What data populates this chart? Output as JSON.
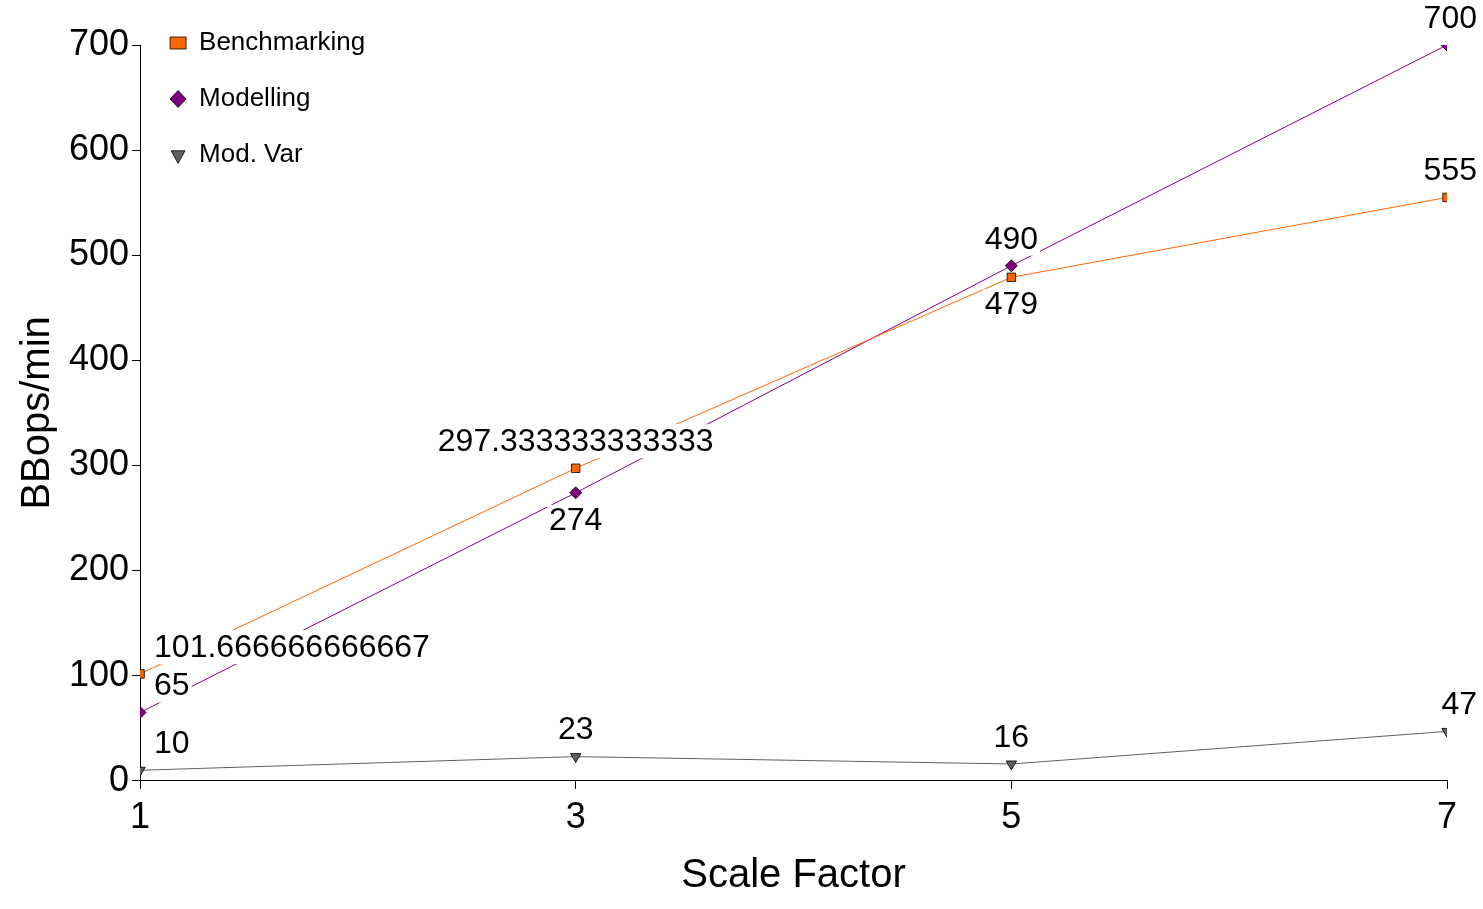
{
  "chart_data": {
    "type": "line",
    "xlabel": "Scale Factor",
    "ylabel": "BBops/min",
    "x": [
      1,
      3,
      5,
      7
    ],
    "xlim": [
      1,
      7
    ],
    "xticks": [
      1,
      3,
      5,
      7
    ],
    "ylim": [
      0,
      700
    ],
    "yticks": [
      0,
      100,
      200,
      300,
      400,
      500,
      600,
      700
    ],
    "grid": false,
    "legend": "top left",
    "data_labels": true,
    "series": [
      {
        "name": "Benchmarking",
        "color": "#ff6600",
        "marker": "square",
        "values": [
          101.666666666667,
          297.333333333333,
          479,
          555
        ]
      },
      {
        "name": "Modelling",
        "color": "#800080",
        "marker": "diamond",
        "values": [
          65,
          274,
          490,
          700
        ]
      },
      {
        "name": "Mod. Var",
        "color": "#606060",
        "marker": "triangle",
        "values": [
          10,
          23,
          16,
          47
        ]
      }
    ]
  }
}
